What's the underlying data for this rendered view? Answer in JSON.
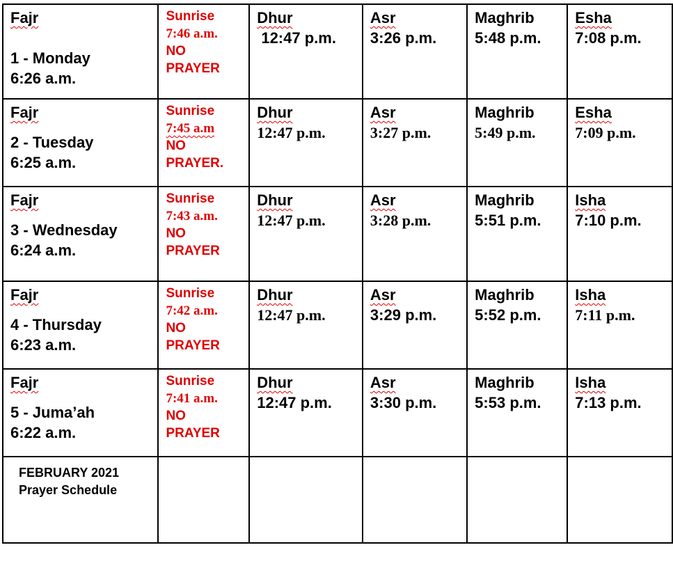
{
  "title": "FEBRUARY 2021",
  "subtitle": "Prayer Schedule",
  "days": [
    {
      "fajr_label": "Fajr",
      "day": "1 - Monday",
      "fajr": "6:26 a.m.",
      "sunrise_label": "Sunrise",
      "sunrise": "7:46 a.m.",
      "no1": "NO",
      "no2": "PRAYER",
      "dhur_label": "Dhur",
      "dhur": " 12:47 p.m.",
      "asr_label": "Asr",
      "asr": "3:26 p.m.",
      "maghrib_label": "Maghrib",
      "maghrib": "5:48 p.m.",
      "isha_label": "Esha",
      "isha": "7:08 p.m."
    },
    {
      "fajr_label": "Fajr",
      "day": "2 - Tuesday",
      "fajr": "6:25 a.m.",
      "sunrise_label": "Sunrise",
      "sunrise": "7:45 a.m",
      "no1": "NO",
      "no2": "PRAYER.",
      "dhur_label": "Dhur",
      "dhur": "12:47 p.m.",
      "asr_label": "Asr",
      "asr": "3:27 p.m.",
      "maghrib_label": "Maghrib",
      "maghrib": "5:49 p.m.",
      "isha_label": "Esha",
      "isha": "7:09 p.m."
    },
    {
      "fajr_label": "Fajr",
      "day": "3 - Wednesday",
      "fajr": "6:24 a.m.",
      "sunrise_label": "Sunrise",
      "sunrise": "7:43 a.m.",
      "no1": "NO",
      "no2": "PRAYER",
      "dhur_label": "Dhur",
      "dhur": "12:47 p.m.",
      "asr_label": "Asr",
      "asr": "3:28 p.m.",
      "maghrib_label": "Maghrib",
      "maghrib": "5:51 p.m.",
      "isha_label": "Isha",
      "isha": "7:10 p.m."
    },
    {
      "fajr_label": "Fajr",
      "day": "4 - Thursday",
      "fajr": "6:23 a.m.",
      "sunrise_label": "Sunrise",
      "sunrise": "7:42 a.m.",
      "no1": "NO",
      "no2": "PRAYER",
      "dhur_label": "Dhur",
      "dhur": "12:47 p.m.",
      "asr_label": "Asr",
      "asr": "3:29 p.m.",
      "maghrib_label": "Maghrib",
      "maghrib": "5:52 p.m.",
      "isha_label": "Isha",
      "isha": "7:11 p.m."
    },
    {
      "fajr_label": "Fajr",
      "day": "5 - Juma’ah",
      "fajr": "6:22 a.m.",
      "sunrise_label": "Sunrise",
      "sunrise": "7:41 a.m.",
      "no1": "NO",
      "no2": "PRAYER",
      "dhur_label": "Dhur",
      "dhur": "12:47 p.m.",
      "asr_label": "Asr",
      "asr": "3:30 p.m.",
      "maghrib_label": "Maghrib",
      "maghrib": "5:53 p.m.",
      "isha_label": "Isha",
      "isha": "7:13 p.m."
    }
  ],
  "colors": {
    "sunrise_text": "#e00000",
    "spellcheck": "#d00000"
  }
}
